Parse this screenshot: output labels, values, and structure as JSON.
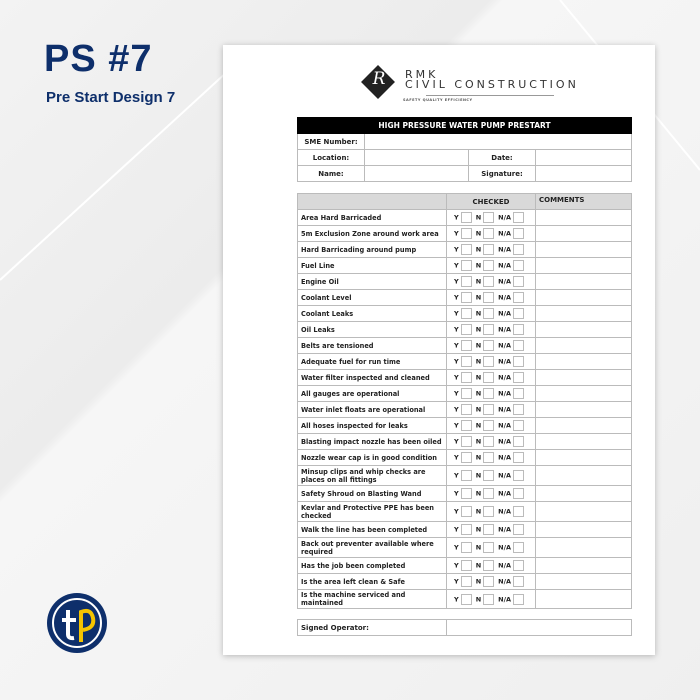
{
  "banner": {
    "title": "PS #7",
    "subtitle": "Pre Start Design 7"
  },
  "company": {
    "line1": "RMK",
    "line2": "CIVIL CONSTRUCTION",
    "tagline": "SAFETY QUALITY EFFICIENCY",
    "monogram": "R"
  },
  "form": {
    "title": "HIGH PRESSURE WATER PUMP PRESTART",
    "sme_label": "SME Number:",
    "location_label": "Location:",
    "date_label": "Date:",
    "name_label": "Name:",
    "signature_label": "Signature:"
  },
  "checklist": {
    "checked_header": "CHECKED",
    "comments_header": "COMMENTS",
    "options": [
      "Y",
      "N",
      "N/A"
    ],
    "items": [
      "Area Hard Barricaded",
      "5m Exclusion Zone around work area",
      "Hard Barricading around pump",
      "Fuel Line",
      "Engine Oil",
      "Coolant Level",
      "Coolant Leaks",
      "Oil Leaks",
      "Belts are tensioned",
      "Adequate fuel for run time",
      "Water filter inspected and cleaned",
      "All gauges are operational",
      "Water inlet floats are operational",
      "All hoses inspected for leaks",
      "Blasting impact nozzle has been oiled",
      "Nozzle wear cap is in good condition",
      "Minsup clips and whip checks are places on all fittings",
      "Safety Shroud on Blasting Wand",
      "Kevlar and Protective PPE has been checked",
      "Walk the line has been completed",
      "Back out preventer available where required",
      "Has the job been completed",
      "Is the area left clean & Safe",
      "Is the machine serviced and maintained"
    ]
  },
  "signed_operator_label": "Signed Operator:",
  "colors": {
    "brand_navy": "#0e2f6b",
    "brand_yellow": "#f5c400",
    "header_black": "#000000",
    "header_gray": "#d9d9d9"
  }
}
